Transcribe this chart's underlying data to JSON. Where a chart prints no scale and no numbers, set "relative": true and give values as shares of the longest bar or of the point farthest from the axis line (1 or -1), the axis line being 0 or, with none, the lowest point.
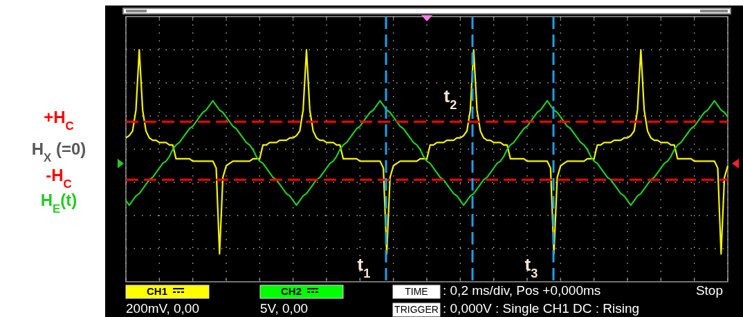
{
  "chart_data": {
    "type": "line",
    "relative": true,
    "categories": [
      null,
      null,
      null,
      null,
      null,
      null,
      null,
      null,
      null,
      null,
      null,
      null,
      null,
      null,
      null,
      null,
      null,
      null,
      null,
      null,
      null,
      null,
      null,
      null,
      null,
      null,
      null,
      null,
      null,
      null,
      null,
      null,
      null,
      null,
      null,
      null,
      null,
      null,
      null,
      null,
      null,
      null,
      null,
      null,
      null,
      null,
      null,
      null,
      null,
      null,
      null,
      null,
      null,
      null,
      null,
      null,
      null,
      null,
      null,
      null,
      null,
      null,
      null,
      null,
      null,
      null,
      null,
      null,
      null,
      null,
      null,
      null,
      null,
      null,
      null,
      null,
      null,
      null,
      null,
      null,
      null,
      null,
      null,
      null,
      null,
      null,
      null,
      null,
      null,
      null,
      null,
      null,
      null,
      null,
      null,
      null,
      null,
      null,
      null,
      null,
      null,
      null,
      null,
      null,
      null,
      null,
      null,
      null,
      null,
      null,
      null,
      null,
      null,
      null,
      null,
      null,
      null,
      null,
      null,
      null,
      null,
      null,
      null,
      null,
      null,
      null,
      null,
      null,
      null,
      null,
      null,
      null,
      null,
      null,
      null,
      null,
      null,
      null,
      null,
      null,
      null,
      null,
      null,
      null,
      null,
      null,
      null,
      null,
      null,
      null,
      null,
      null,
      null,
      null,
      null,
      null,
      null,
      null,
      null,
      null,
      null,
      null,
      null,
      null,
      null,
      null,
      null,
      null,
      null,
      null,
      null,
      null,
      null,
      null,
      null,
      null,
      null,
      null,
      null,
      null,
      null
    ],
    "grid": true,
    "series": [
      {
        "color": "#f5f500",
        "values": [
          0.62,
          0.63,
          0.65,
          0.74,
          1,
          0.74,
          0.65,
          0.62,
          0.61,
          0.61,
          0.6,
          0.6,
          0.6,
          0.59,
          0.59,
          0.53,
          0.53,
          0.53,
          0.53,
          0.53,
          0.52,
          0.52,
          0.52,
          0.52,
          0.52,
          0.52,
          0.52,
          0.49,
          0.12,
          0.45,
          0.5,
          0.51,
          0.52,
          0.52,
          0.52,
          0.52,
          0.52,
          0.52,
          0.53,
          0.53,
          0.53,
          0.59,
          0.59,
          0.6,
          0.6,
          0.6,
          0.61,
          0.61,
          0.61,
          0.62,
          0.62,
          0.63,
          0.65,
          0.74,
          1,
          0.74,
          0.65,
          0.62,
          0.61,
          0.61,
          0.6,
          0.6,
          0.6,
          0.59,
          0.59,
          0.53,
          0.53,
          0.53,
          0.53,
          0.53,
          0.52,
          0.52,
          0.52,
          0.52,
          0.52,
          0.52,
          0.52,
          0.49,
          0.12,
          0.45,
          0.5,
          0.51,
          0.52,
          0.52,
          0.52,
          0.52,
          0.52,
          0.52,
          0.53,
          0.53,
          0.53,
          0.59,
          0.59,
          0.6,
          0.6,
          0.6,
          0.61,
          0.61,
          0.61,
          0.62,
          0.62,
          0.63,
          0.65,
          0.74,
          1,
          0.74,
          0.65,
          0.62,
          0.61,
          0.61,
          0.6,
          0.6,
          0.6,
          0.59,
          0.59,
          0.53,
          0.53,
          0.53,
          0.53,
          0.53,
          0.52,
          0.52,
          0.52,
          0.52,
          0.52,
          0.52,
          0.52,
          0.49,
          0.12,
          0.45,
          0.5,
          0.51,
          0.52,
          0.52,
          0.52,
          0.52,
          0.52,
          0.52,
          0.53,
          0.53,
          0.53,
          0.59,
          0.59,
          0.6,
          0.6,
          0.6,
          0.61,
          0.61,
          0.61,
          0.62,
          0.62,
          0.63,
          0.65,
          0.74,
          1,
          0.74,
          0.65,
          0.62,
          0.61,
          0.61,
          0.6,
          0.6,
          0.6,
          0.59,
          0.59,
          0.53,
          0.53,
          0.53,
          0.53,
          0.53,
          0.52,
          0.52,
          0.52,
          0.52,
          0.52,
          0.52,
          0.52,
          0.49,
          0.12,
          0.45,
          0.5
        ]
      },
      {
        "name": "H$_{E}$(t)",
        "color": "#22cc22",
        "values": [
          0.35,
          0.33,
          0.35,
          0.37,
          0.38,
          0.4,
          0.42,
          0.44,
          0.45,
          0.47,
          0.49,
          0.51,
          0.52,
          0.54,
          0.57,
          0.59,
          0.6,
          0.62,
          0.64,
          0.66,
          0.67,
          0.69,
          0.71,
          0.73,
          0.74,
          0.76,
          0.78,
          0.76,
          0.74,
          0.73,
          0.71,
          0.69,
          0.67,
          0.66,
          0.64,
          0.62,
          0.6,
          0.59,
          0.57,
          0.54,
          0.52,
          0.51,
          0.49,
          0.47,
          0.45,
          0.44,
          0.42,
          0.4,
          0.38,
          0.37,
          0.35,
          0.33,
          0.35,
          0.37,
          0.38,
          0.4,
          0.42,
          0.44,
          0.45,
          0.47,
          0.49,
          0.51,
          0.52,
          0.54,
          0.57,
          0.59,
          0.6,
          0.62,
          0.64,
          0.66,
          0.67,
          0.69,
          0.71,
          0.73,
          0.74,
          0.76,
          0.78,
          0.76,
          0.74,
          0.73,
          0.71,
          0.69,
          0.67,
          0.66,
          0.64,
          0.62,
          0.6,
          0.59,
          0.57,
          0.54,
          0.52,
          0.51,
          0.49,
          0.47,
          0.45,
          0.44,
          0.42,
          0.4,
          0.38,
          0.37,
          0.35,
          0.33,
          0.35,
          0.37,
          0.38,
          0.4,
          0.42,
          0.44,
          0.45,
          0.47,
          0.49,
          0.51,
          0.52,
          0.54,
          0.57,
          0.59,
          0.6,
          0.62,
          0.64,
          0.66,
          0.67,
          0.69,
          0.71,
          0.73,
          0.74,
          0.76,
          0.78,
          0.76,
          0.74,
          0.73,
          0.71,
          0.69,
          0.67,
          0.66,
          0.64,
          0.62,
          0.6,
          0.59,
          0.57,
          0.54,
          0.52,
          0.51,
          0.49,
          0.47,
          0.45,
          0.44,
          0.42,
          0.4,
          0.38,
          0.37,
          0.35,
          0.33,
          0.35,
          0.37,
          0.38,
          0.4,
          0.42,
          0.44,
          0.45,
          0.47,
          0.49,
          0.51,
          0.52,
          0.54,
          0.57,
          0.59,
          0.6,
          0.62,
          0.64,
          0.66,
          0.67,
          0.69,
          0.71,
          0.73,
          0.74,
          0.76,
          0.78,
          0.76,
          0.74,
          0.73,
          0.71
        ]
      }
    ],
    "ref_lines": [
      {
        "axis": "y",
        "value": 0.69,
        "label": "+H$_{C}$",
        "color": "#ff0000",
        "line_style": "dashed"
      },
      {
        "axis": "y",
        "value": 0.44,
        "label": "-H$_{C}$",
        "color": "#ff0000",
        "line_style": "dashed"
      }
    ],
    "annotations": [
      "H$_{X}$ (=0)",
      "t$_{1}$",
      "t$_{2}$",
      "t$_{3}$",
      "CH1",
      "200mV, 0,00",
      "CH2",
      "5V, 0,00",
      "TIME",
      ": 0,2 ms/div, Pos +0,000ms",
      "Stop",
      "TRIGGER",
      ": 0,000V : Single CH1 DC : Rising"
    ]
  }
}
